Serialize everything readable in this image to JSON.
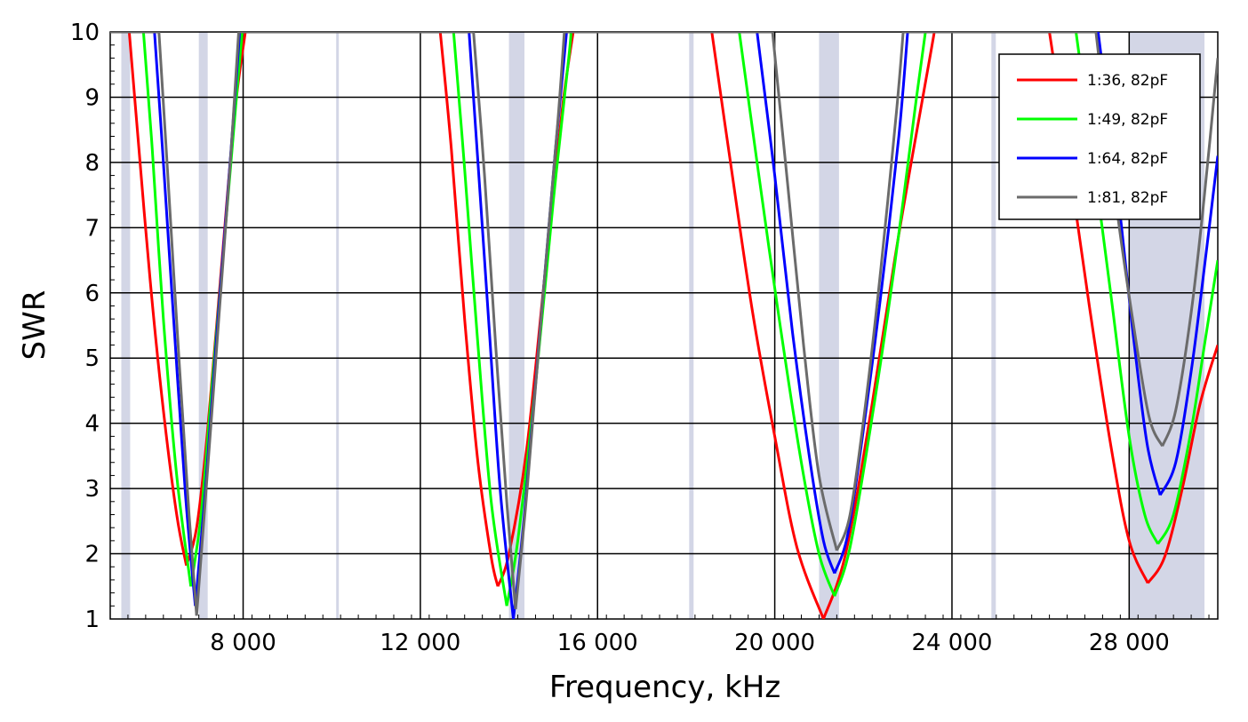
{
  "chart_data": {
    "type": "line",
    "xlabel": "Frequency, kHz",
    "ylabel": "SWR",
    "xlim": [
      5000,
      30000
    ],
    "ylim": [
      1,
      10
    ],
    "xticks": [
      8000,
      12000,
      16000,
      20000,
      24000,
      28000
    ],
    "xtick_labels": [
      "8 000",
      "12 000",
      "16 000",
      "20 000",
      "24 000",
      "28 000"
    ],
    "yticks": [
      1,
      2,
      3,
      4,
      5,
      6,
      7,
      8,
      9,
      10
    ],
    "ytick_labels": [
      "1",
      "2",
      "3",
      "4",
      "5",
      "6",
      "7",
      "8",
      "9",
      "10"
    ],
    "grid": true,
    "legend_position": "top-right",
    "band_color": "#d3d6e6",
    "bands": [
      [
        5250,
        5450
      ],
      [
        7000,
        7200
      ],
      [
        10100,
        10150
      ],
      [
        14000,
        14350
      ],
      [
        18068,
        18168
      ],
      [
        21000,
        21450
      ],
      [
        24890,
        24990
      ],
      [
        28000,
        29700
      ]
    ],
    "series": [
      {
        "name": "1:36, 82pF",
        "color": "#ff0000",
        "dips": [
          {
            "f0": 6720,
            "min": 1.82,
            "left": [
              [
                5430,
                10
              ],
              [
                5600,
                8.6
              ],
              [
                5900,
                6.2
              ],
              [
                6200,
                4.2
              ],
              [
                6500,
                2.6
              ],
              [
                6720,
                1.82
              ]
            ],
            "right": [
              [
                6720,
                1.82
              ],
              [
                6950,
                2.4
              ],
              [
                7200,
                3.9
              ],
              [
                7500,
                6.3
              ],
              [
                7800,
                8.7
              ],
              [
                8050,
                10
              ]
            ]
          },
          {
            "f0": 13750,
            "min": 1.5,
            "left": [
              [
                12450,
                10
              ],
              [
                12700,
                8.2
              ],
              [
                13000,
                5.6
              ],
              [
                13300,
                3.4
              ],
              [
                13600,
                1.95
              ],
              [
                13750,
                1.5
              ]
            ],
            "right": [
              [
                13750,
                1.5
              ],
              [
                14000,
                2.0
              ],
              [
                14400,
                3.6
              ],
              [
                14800,
                6.2
              ],
              [
                15200,
                8.8
              ],
              [
                15450,
                10
              ]
            ]
          },
          {
            "f0": 21100,
            "min": 1.0,
            "left": [
              [
                18580,
                10
              ],
              [
                19000,
                8.0
              ],
              [
                19500,
                5.7
              ],
              [
                20000,
                3.8
              ],
              [
                20500,
                2.1
              ],
              [
                21100,
                1.0
              ]
            ],
            "right": [
              [
                21100,
                1.0
              ],
              [
                21600,
                2.0
              ],
              [
                22200,
                4.3
              ],
              [
                22800,
                6.9
              ],
              [
                23500,
                9.6
              ],
              [
                23600,
                10
              ]
            ]
          },
          {
            "f0": 28420,
            "min": 1.55,
            "left": [
              [
                26200,
                10
              ],
              [
                26600,
                8.2
              ],
              [
                27100,
                5.8
              ],
              [
                27600,
                3.6
              ],
              [
                28000,
                2.2
              ],
              [
                28420,
                1.55
              ]
            ],
            "right": [
              [
                28420,
                1.55
              ],
              [
                28800,
                1.95
              ],
              [
                29200,
                3.0
              ],
              [
                29600,
                4.3
              ],
              [
                30000,
                5.2
              ]
            ]
          }
        ]
      },
      {
        "name": "1:49, 82pF",
        "color": "#00ff00",
        "dips": [
          {
            "f0": 6820,
            "min": 1.5,
            "left": [
              [
                5750,
                10
              ],
              [
                5950,
                8.2
              ],
              [
                6200,
                5.6
              ],
              [
                6500,
                3.2
              ],
              [
                6820,
                1.5
              ]
            ],
            "right": [
              [
                6820,
                1.5
              ],
              [
                7050,
                2.6
              ],
              [
                7300,
                4.6
              ],
              [
                7600,
                7.0
              ],
              [
                7900,
                9.4
              ],
              [
                7980,
                10
              ]
            ]
          },
          {
            "f0": 13950,
            "min": 1.2,
            "left": [
              [
                12750,
                10
              ],
              [
                13000,
                7.9
              ],
              [
                13300,
                5.2
              ],
              [
                13600,
                2.8
              ],
              [
                13950,
                1.2
              ]
            ],
            "right": [
              [
                13950,
                1.2
              ],
              [
                14200,
                2.2
              ],
              [
                14600,
                4.6
              ],
              [
                15000,
                7.4
              ],
              [
                15350,
                9.6
              ],
              [
                15400,
                10
              ]
            ]
          },
          {
            "f0": 21350,
            "min": 1.35,
            "left": [
              [
                19200,
                10
              ],
              [
                19600,
                8.0
              ],
              [
                20100,
                5.6
              ],
              [
                20600,
                3.4
              ],
              [
                21000,
                2.0
              ],
              [
                21350,
                1.35
              ]
            ],
            "right": [
              [
                21350,
                1.35
              ],
              [
                21700,
                2.1
              ],
              [
                22200,
                4.1
              ],
              [
                22700,
                6.4
              ],
              [
                23200,
                9.0
              ],
              [
                23400,
                10
              ]
            ]
          },
          {
            "f0": 28650,
            "min": 2.15,
            "left": [
              [
                26800,
                10
              ],
              [
                27200,
                8.0
              ],
              [
                27600,
                5.9
              ],
              [
                28000,
                3.8
              ],
              [
                28350,
                2.6
              ],
              [
                28650,
                2.15
              ]
            ],
            "right": [
              [
                28650,
                2.15
              ],
              [
                29000,
                2.6
              ],
              [
                29400,
                3.9
              ],
              [
                29700,
                5.2
              ],
              [
                30000,
                6.5
              ]
            ]
          }
        ]
      },
      {
        "name": "1:64, 82pF",
        "color": "#0000ff",
        "dips": [
          {
            "f0": 6920,
            "min": 1.2,
            "left": [
              [
                6000,
                10
              ],
              [
                6200,
                8.0
              ],
              [
                6450,
                5.4
              ],
              [
                6700,
                2.9
              ],
              [
                6920,
                1.2
              ]
            ],
            "right": [
              [
                6920,
                1.2
              ],
              [
                7150,
                3.0
              ],
              [
                7400,
                5.3
              ],
              [
                7650,
                7.5
              ],
              [
                7880,
                9.6
              ],
              [
                7920,
                10
              ]
            ]
          },
          {
            "f0": 14100,
            "min": 1.0,
            "left": [
              [
                13100,
                10
              ],
              [
                13300,
                8.0
              ],
              [
                13550,
                5.5
              ],
              [
                13800,
                3.0
              ],
              [
                14100,
                1.0
              ]
            ],
            "right": [
              [
                14100,
                1.0
              ],
              [
                14350,
                2.6
              ],
              [
                14700,
                5.4
              ],
              [
                15050,
                8.2
              ],
              [
                15300,
                10
              ]
            ]
          },
          {
            "f0": 21350,
            "min": 1.7,
            "left": [
              [
                19600,
                10
              ],
              [
                20000,
                7.8
              ],
              [
                20400,
                5.4
              ],
              [
                20800,
                3.4
              ],
              [
                21100,
                2.2
              ],
              [
                21350,
                1.7
              ]
            ],
            "right": [
              [
                21350,
                1.7
              ],
              [
                21650,
                2.3
              ],
              [
                22000,
                3.9
              ],
              [
                22400,
                6.0
              ],
              [
                22800,
                8.4
              ],
              [
                23000,
                10
              ]
            ]
          },
          {
            "f0": 28700,
            "min": 2.9,
            "left": [
              [
                27300,
                10
              ],
              [
                27700,
                7.8
              ],
              [
                28050,
                5.6
              ],
              [
                28400,
                3.7
              ],
              [
                28700,
                2.9
              ]
            ],
            "right": [
              [
                28700,
                2.9
              ],
              [
                29050,
                3.4
              ],
              [
                29400,
                4.8
              ],
              [
                29700,
                6.4
              ],
              [
                30000,
                8.1
              ]
            ]
          }
        ]
      },
      {
        "name": "1:81, 82pF",
        "color": "#6b6b6b",
        "dips": [
          {
            "f0": 6950,
            "min": 1.05,
            "left": [
              [
                6100,
                10
              ],
              [
                6300,
                7.8
              ],
              [
                6550,
                5.0
              ],
              [
                6780,
                2.6
              ],
              [
                6950,
                1.05
              ]
            ],
            "right": [
              [
                6950,
                1.05
              ],
              [
                7200,
                3.3
              ],
              [
                7450,
                5.6
              ],
              [
                7700,
                7.9
              ],
              [
                7900,
                10
              ]
            ]
          },
          {
            "f0": 14150,
            "min": 1.15,
            "left": [
              [
                13200,
                10
              ],
              [
                13450,
                7.8
              ],
              [
                13700,
                5.2
              ],
              [
                13950,
                2.8
              ],
              [
                14150,
                1.15
              ]
            ],
            "right": [
              [
                14150,
                1.15
              ],
              [
                14400,
                2.9
              ],
              [
                14750,
                5.8
              ],
              [
                15100,
                8.6
              ],
              [
                15250,
                10
              ]
            ]
          },
          {
            "f0": 21400,
            "min": 2.05,
            "left": [
              [
                19950,
                10
              ],
              [
                20300,
                7.6
              ],
              [
                20650,
                5.2
              ],
              [
                21000,
                3.2
              ],
              [
                21400,
                2.05
              ]
            ],
            "right": [
              [
                21400,
                2.05
              ],
              [
                21700,
                2.6
              ],
              [
                22050,
                4.3
              ],
              [
                22400,
                6.4
              ],
              [
                22750,
                8.8
              ],
              [
                22900,
                10
              ]
            ]
          },
          {
            "f0": 28750,
            "min": 3.65,
            "left": [
              [
                27250,
                10
              ],
              [
                27700,
                7.4
              ],
              [
                28100,
                5.5
              ],
              [
                28450,
                4.1
              ],
              [
                28750,
                3.65
              ]
            ],
            "right": [
              [
                28750,
                3.65
              ],
              [
                29050,
                4.2
              ],
              [
                29400,
                5.7
              ],
              [
                29700,
                7.5
              ],
              [
                30000,
                9.6
              ]
            ]
          }
        ]
      }
    ]
  }
}
